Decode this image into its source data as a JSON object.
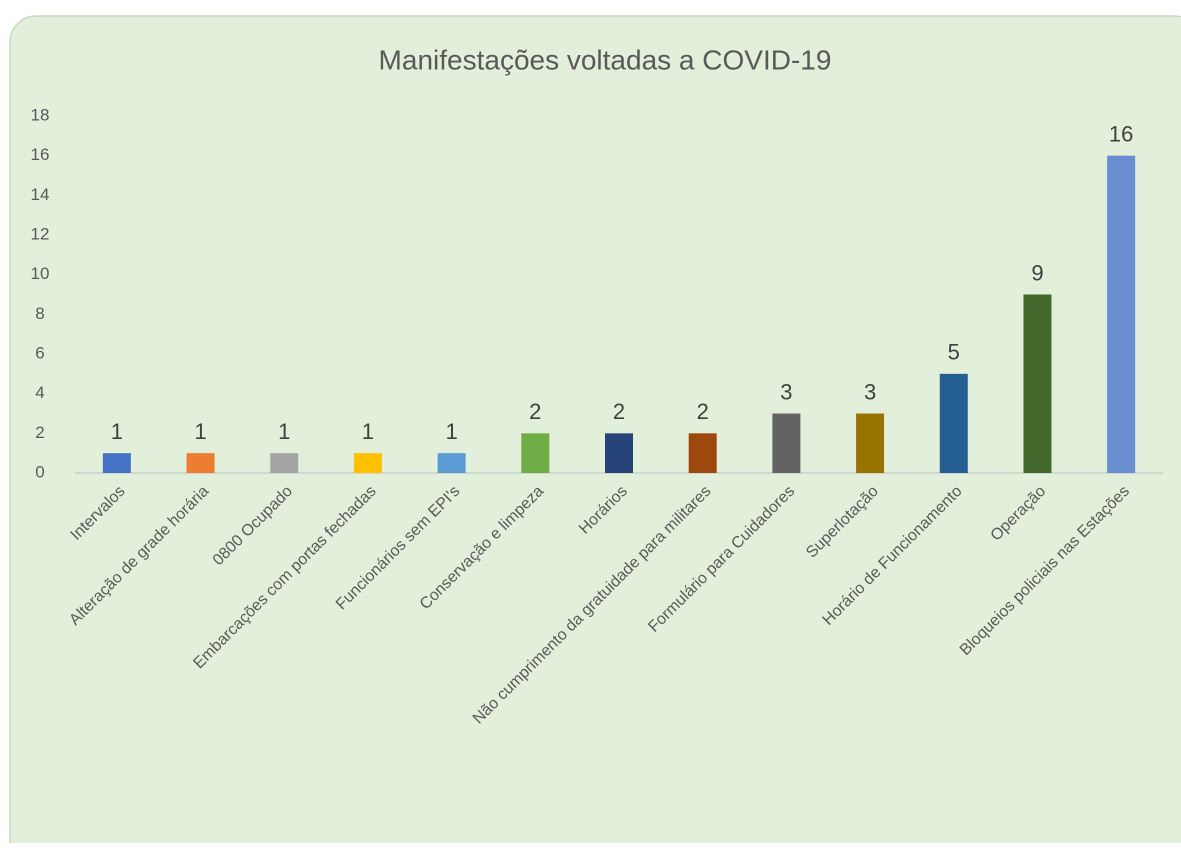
{
  "chart_data": {
    "type": "bar",
    "title": "Manifestações voltadas a COVID-19",
    "categories": [
      "Intervalos",
      "Alteração de grade horária",
      "0800 Ocupado",
      "Embarcações com portas fechadas",
      "Funcionários sem EPI's",
      "Conservação e limpeza",
      "Horários",
      "Não cumprimento da gratuidade para militares",
      "Formulário para Cuidadores",
      "Superlotação",
      "Horário de Funcionamento",
      "Operação",
      "Bloqueios policiais nas Estações"
    ],
    "values": [
      1,
      1,
      1,
      1,
      1,
      2,
      2,
      2,
      3,
      3,
      5,
      9,
      16
    ],
    "colors": [
      "#4472c4",
      "#ed7d31",
      "#a5a5a5",
      "#ffc000",
      "#5b9bd5",
      "#70ad47",
      "#264478",
      "#9e480e",
      "#636363",
      "#997300",
      "#255e91",
      "#43682b",
      "#698ed0"
    ],
    "ylim": [
      0,
      18
    ],
    "yticks": [
      0,
      2,
      4,
      6,
      8,
      10,
      12,
      14,
      16,
      18
    ],
    "grid": false
  }
}
